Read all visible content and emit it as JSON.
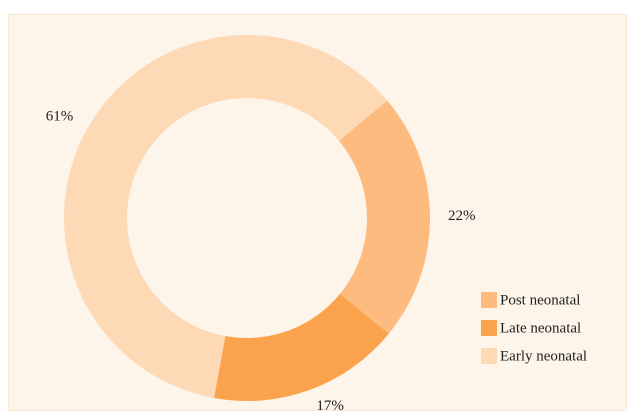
{
  "chart_data": {
    "type": "donut",
    "categories": [
      "Post neonatal",
      "Late neonatal",
      "Early neonatal"
    ],
    "values": [
      22,
      17,
      61
    ],
    "value_labels": [
      "22%",
      "17%",
      "61%"
    ],
    "colors": [
      "#fdbb80",
      "#fba34c",
      "#fdd9b6"
    ],
    "legend": "bottom-right"
  }
}
